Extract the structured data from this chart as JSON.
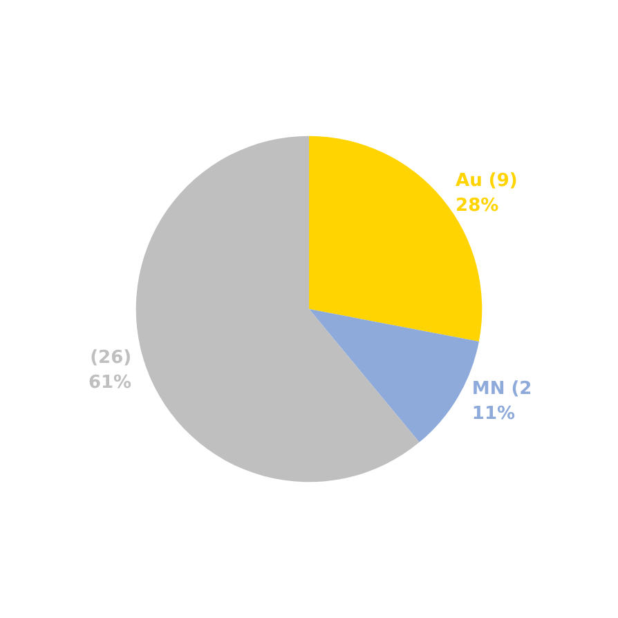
{
  "chart_data": {
    "type": "pie",
    "categories": [
      "Au (9)",
      "MN (2",
      "(26)"
    ],
    "values": [
      28,
      11,
      61
    ],
    "value_labels": [
      "28%",
      "11%",
      "61%"
    ],
    "colors": [
      "#ffd400",
      "#8eaadb",
      "#bfbfbf"
    ],
    "legend": false
  }
}
